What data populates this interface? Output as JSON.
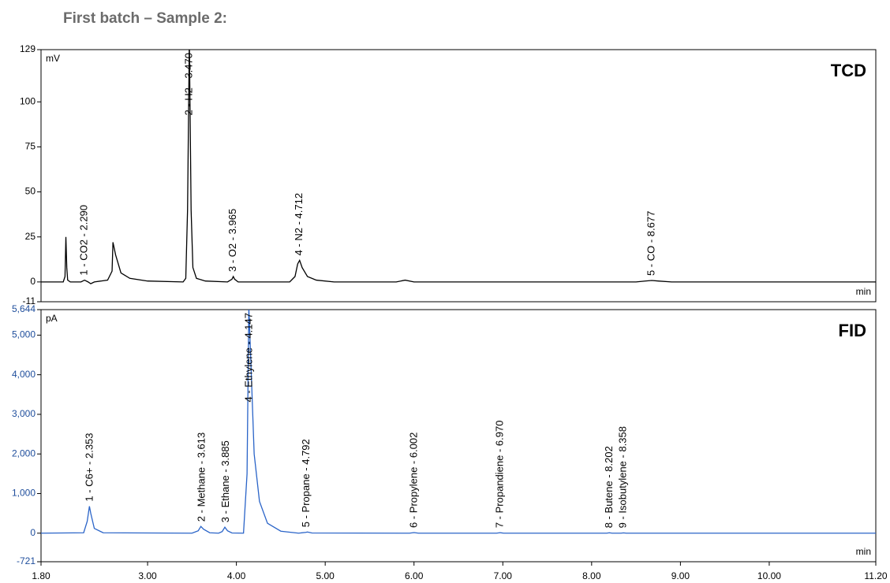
{
  "title": "First batch – Sample 2:",
  "chart_data": [
    {
      "type": "line",
      "panel_label": "TCD",
      "y_unit": "mV",
      "x_unit": "min",
      "axis_color": "#000000",
      "xlim": [
        1.8,
        11.2
      ],
      "ylim": [
        -11,
        129
      ],
      "yticks": [
        -11,
        0,
        25,
        50,
        75,
        100,
        129
      ],
      "series": [
        {
          "color": "#000000",
          "x": [
            1.8,
            2.05,
            2.07,
            2.08,
            2.09,
            2.1,
            2.13,
            2.25,
            2.29,
            2.33,
            2.36,
            2.4,
            2.55,
            2.6,
            2.61,
            2.64,
            2.7,
            2.8,
            3.0,
            3.4,
            3.43,
            3.45,
            3.47,
            3.49,
            3.51,
            3.55,
            3.65,
            3.9,
            3.95,
            3.965,
            3.98,
            4.02,
            4.6,
            4.66,
            4.69,
            4.712,
            4.74,
            4.8,
            4.9,
            5.1,
            5.8,
            5.9,
            6.0,
            6.3,
            8.5,
            8.6,
            8.677,
            8.75,
            8.9,
            11.2
          ],
          "values": [
            0,
            0,
            3,
            25,
            8,
            1,
            0,
            0,
            1,
            0,
            -1,
            0,
            1,
            6,
            22,
            15,
            5,
            2,
            0.5,
            0,
            2,
            40,
            135,
            40,
            8,
            2,
            0.5,
            0,
            1.5,
            3,
            1.5,
            0,
            0,
            3,
            10,
            12,
            8,
            3,
            1,
            0,
            0,
            1,
            0,
            0,
            0,
            0.5,
            0.8,
            0.5,
            0,
            0
          ]
        }
      ],
      "annotations": [
        {
          "label": "1 - CO2 - 2.290",
          "x": 2.29
        },
        {
          "label": "2 - H2 - 3.470",
          "x": 3.47
        },
        {
          "label": "3 - O2 - 3.965",
          "x": 3.965
        },
        {
          "label": "4 - N2 - 4.712",
          "x": 4.712
        },
        {
          "label": "5 - CO - 8.677",
          "x": 8.677
        }
      ]
    },
    {
      "type": "line",
      "panel_label": "FID",
      "y_unit": "pA",
      "x_unit": "min",
      "axis_color": "#1f4e9c",
      "xlim": [
        1.8,
        11.2
      ],
      "xticks": [
        {
          "value": 1.8,
          "label": "1.80"
        },
        {
          "value": 3,
          "label": "3.00"
        },
        {
          "value": 4,
          "label": "4.00"
        },
        {
          "value": 5,
          "label": "5.00"
        },
        {
          "value": 6,
          "label": "6.00"
        },
        {
          "value": 7,
          "label": "7.00"
        },
        {
          "value": 8,
          "label": "8.00"
        },
        {
          "value": 9,
          "label": "9.00"
        },
        {
          "value": 10,
          "label": "10.00"
        },
        {
          "value": 11.2,
          "label": "11.20"
        }
      ],
      "ylim": [
        -721,
        5644
      ],
      "yticks": [
        -721,
        0,
        {
          "value": 1000,
          "label": "1,000"
        },
        {
          "value": 2000,
          "label": "2,000"
        },
        {
          "value": 3000,
          "label": "3,000"
        },
        {
          "value": 4000,
          "label": "4,000"
        },
        {
          "value": 5000,
          "label": "5,000"
        },
        {
          "value": 5644,
          "label": "5,644"
        }
      ],
      "series": [
        {
          "color": "#2a64c8",
          "x": [
            1.8,
            2.28,
            2.32,
            2.345,
            2.36,
            2.4,
            2.5,
            3.5,
            3.57,
            3.6,
            3.63,
            3.7,
            3.8,
            3.84,
            3.87,
            3.9,
            3.95,
            4.08,
            4.12,
            4.14,
            4.16,
            4.2,
            4.26,
            4.35,
            4.5,
            4.7,
            4.78,
            4.8,
            4.85,
            5.95,
            6.0,
            6.05,
            6.93,
            6.97,
            7.01,
            8.17,
            8.2,
            8.23,
            8.33,
            8.36,
            8.39,
            11.2
          ],
          "values": [
            0,
            10,
            300,
            680,
            500,
            120,
            10,
            0,
            60,
            170,
            100,
            10,
            0,
            40,
            150,
            60,
            5,
            0,
            1500,
            5700,
            4500,
            2000,
            800,
            250,
            50,
            0,
            20,
            30,
            5,
            0,
            15,
            0,
            0,
            12,
            0,
            0,
            10,
            0,
            0,
            8,
            0,
            0
          ]
        }
      ],
      "annotations": [
        {
          "label": "1 - C6+ - 2.353",
          "x": 2.353
        },
        {
          "label": "2 - Methane - 3.613",
          "x": 3.613
        },
        {
          "label": "3 - Ethane - 3.885",
          "x": 3.885
        },
        {
          "label": "4 - Ethylene - 4.147",
          "x": 4.147
        },
        {
          "label": "5 - Propane - 4.792",
          "x": 4.792
        },
        {
          "label": "6 - Propylene - 6.002",
          "x": 6.002
        },
        {
          "label": "7 - Propandiene - 6.970",
          "x": 6.97
        },
        {
          "label": "8 - Butene - 8.202",
          "x": 8.202
        },
        {
          "label": "9 - Isobutylene - 8.358",
          "x": 8.358
        }
      ]
    }
  ]
}
